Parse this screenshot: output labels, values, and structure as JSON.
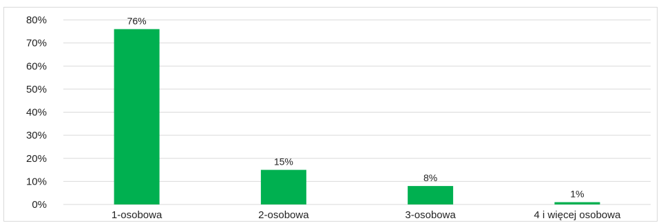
{
  "chart_data": {
    "type": "bar",
    "categories": [
      "1-osobowa",
      "2-osobowa",
      "3-osobowa",
      "4 i więcej osobowa"
    ],
    "values": [
      76,
      15,
      8,
      1
    ],
    "data_labels": [
      "76%",
      "15%",
      "8%",
      "1%"
    ],
    "ylim": [
      0,
      80
    ],
    "yticks": [
      0,
      10,
      20,
      30,
      40,
      50,
      60,
      70,
      80
    ],
    "ytick_labels": [
      "0%",
      "10%",
      "20%",
      "30%",
      "40%",
      "50%",
      "60%",
      "70%",
      "80%"
    ],
    "grid": true,
    "bar_color": "#00b050",
    "grid_color": "#d9d9d9"
  }
}
